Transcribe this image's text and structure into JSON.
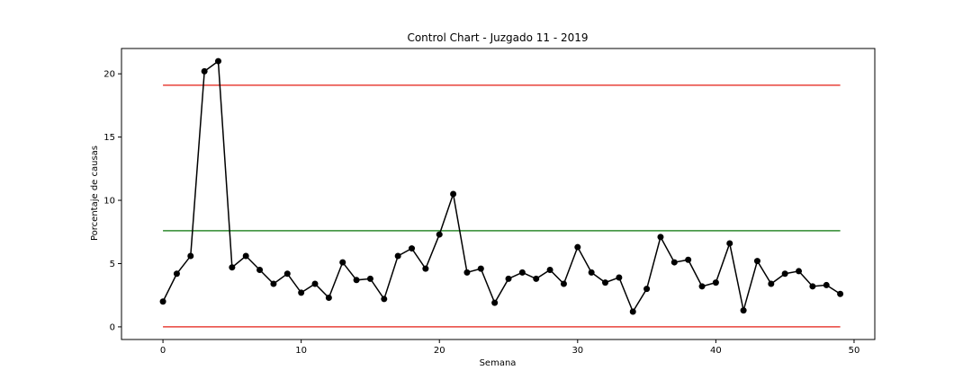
{
  "chart_data": {
    "type": "line",
    "title": "Control Chart - Juzgado 11 - 2019",
    "xlabel": "Semana",
    "ylabel": "Porcentaje de causas",
    "xlim": [
      -3.0,
      51.5
    ],
    "ylim": [
      -1.0,
      22.0
    ],
    "x_ticks": [
      0,
      10,
      20,
      30,
      40,
      50
    ],
    "y_ticks": [
      0,
      5,
      10,
      15,
      20
    ],
    "grid": false,
    "series": [
      {
        "color": "#000000",
        "marker": "circle",
        "x": [
          0,
          1,
          2,
          3,
          4,
          5,
          6,
          7,
          8,
          9,
          10,
          11,
          12,
          13,
          14,
          15,
          16,
          17,
          18,
          19,
          20,
          21,
          22,
          23,
          24,
          25,
          26,
          27,
          28,
          29,
          30,
          31,
          32,
          33,
          34,
          35,
          36,
          37,
          38,
          39,
          40,
          41,
          42,
          43,
          44,
          45,
          46,
          47,
          48,
          49
        ],
        "values": [
          2.0,
          4.2,
          5.6,
          20.2,
          21.0,
          4.7,
          5.6,
          4.5,
          3.4,
          4.2,
          2.7,
          3.4,
          2.3,
          5.1,
          3.7,
          3.8,
          2.2,
          5.6,
          6.2,
          4.6,
          7.3,
          10.5,
          4.3,
          4.6,
          1.9,
          3.8,
          4.3,
          3.8,
          4.5,
          3.4,
          6.3,
          4.3,
          3.5,
          3.9,
          1.2,
          3.0,
          7.1,
          5.1,
          5.3,
          3.2,
          3.5,
          6.6,
          1.3,
          5.2,
          3.4,
          4.2,
          4.4,
          3.2,
          3.3,
          2.6
        ]
      }
    ],
    "reference_lines": [
      {
        "y": 19.1,
        "x_range": [
          0,
          49
        ],
        "color": "#e8423a"
      },
      {
        "y": 7.6,
        "x_range": [
          0,
          49
        ],
        "color": "#2f8a2f"
      },
      {
        "y": 0.0,
        "x_range": [
          0,
          49
        ],
        "color": "#e8423a"
      }
    ]
  }
}
